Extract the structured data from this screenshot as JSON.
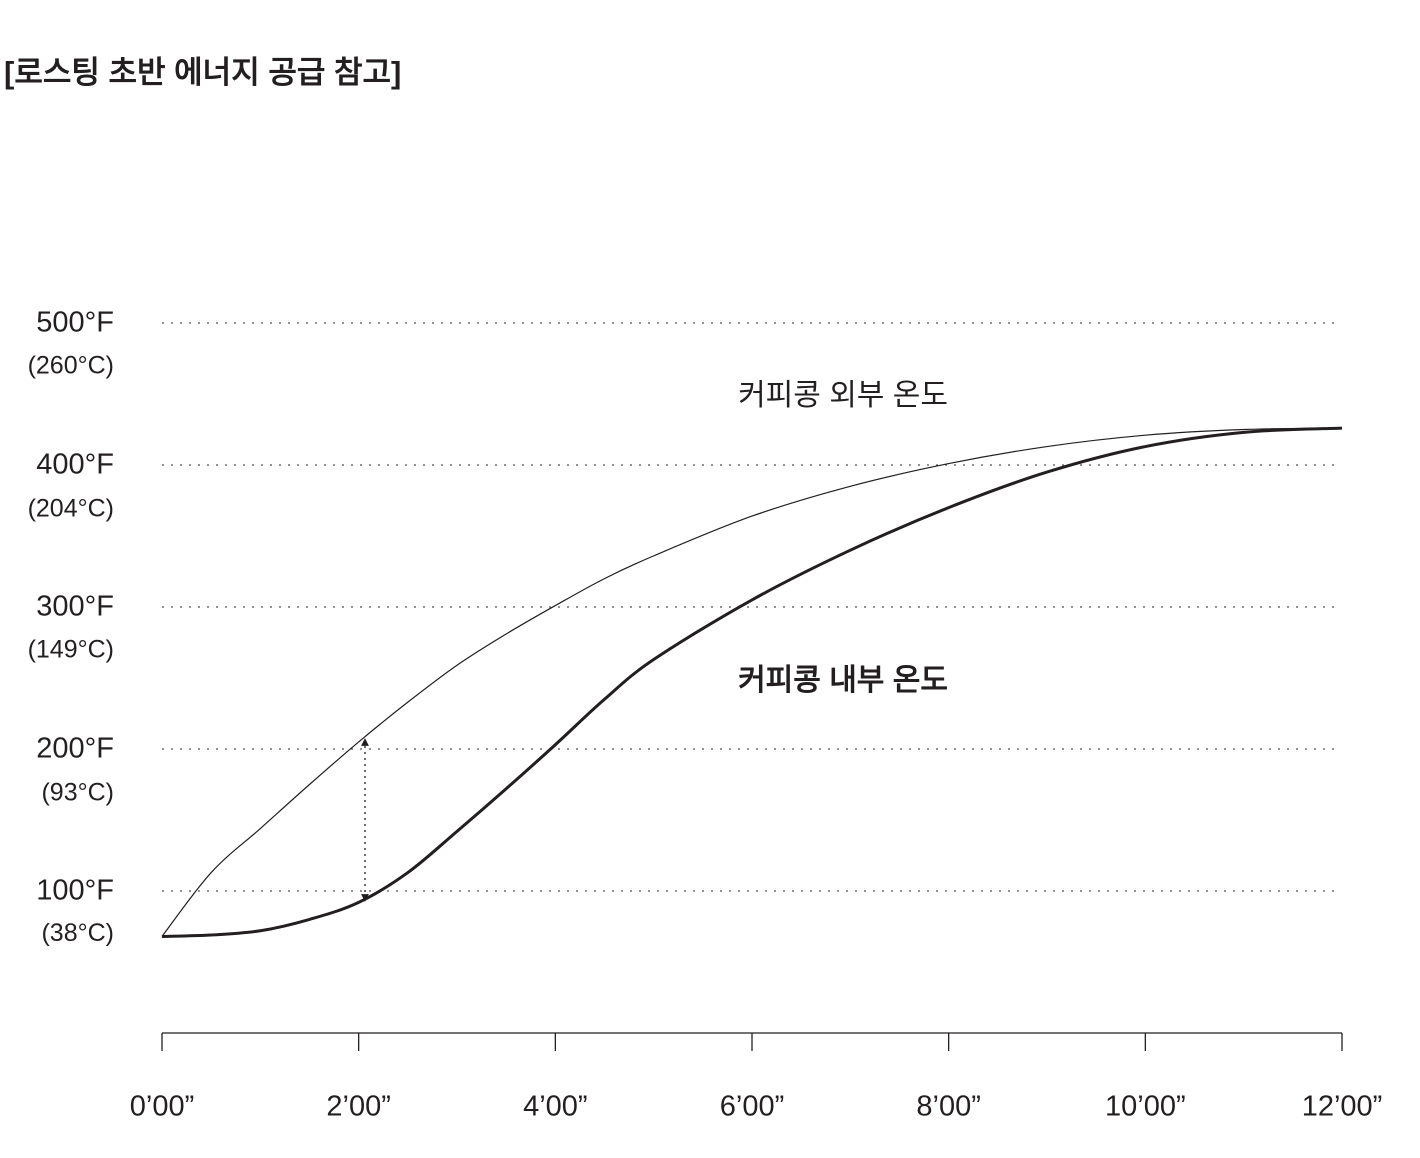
{
  "chart_data": {
    "type": "line",
    "title": "[로스팅 초반 에너지 공급 참고]",
    "annotations": [
      "커피콩 외부 온도",
      "커피콩 내부 온도"
    ],
    "x": [
      0,
      0.5,
      1,
      1.5,
      2,
      2.5,
      3,
      3.5,
      4,
      4.5,
      5,
      6,
      7,
      8,
      9,
      10,
      11,
      12
    ],
    "series": [
      {
        "color": "#231f20",
        "values": [
          68,
          113,
          144,
          175,
          205,
          233,
          259,
          281,
          301,
          320,
          336,
          364,
          385,
          401,
          413,
          421,
          425,
          426
        ]
      },
      {
        "color": "#231f20",
        "values": [
          68,
          69,
          72,
          80,
          92,
          113,
          142,
          172,
          203,
          235,
          263,
          305,
          340,
          370,
          395,
          413,
          423,
          426
        ]
      }
    ],
    "xlim": [
      0,
      12
    ],
    "xticks": [
      {
        "value": 0,
        "label": "0’00”"
      },
      {
        "value": 2,
        "label": "2’00”"
      },
      {
        "value": 4,
        "label": "4’00”"
      },
      {
        "value": 6,
        "label": "6’00”"
      },
      {
        "value": 8,
        "label": "8’00”"
      },
      {
        "value": 10,
        "label": "10’00”"
      },
      {
        "value": 12,
        "label": "12’00”"
      }
    ],
    "ylim": [
      0,
      500
    ],
    "yticks": [
      {
        "value": 100,
        "label": "100°F"
      },
      {
        "value": 200,
        "label": "200°F"
      },
      {
        "value": 300,
        "label": "300°F"
      },
      {
        "value": 400,
        "label": "400°F"
      },
      {
        "value": 500,
        "label": "500°F"
      }
    ],
    "y2lim": [
      -17.8,
      260
    ],
    "y2ticks": [
      {
        "value": 38,
        "label": "(38°C)"
      },
      {
        "value": 93,
        "label": "(93°C)"
      },
      {
        "value": 149,
        "label": "(149°C)"
      },
      {
        "value": 204,
        "label": "(204°C)"
      },
      {
        "value": 260,
        "label": "(260°C)"
      }
    ],
    "grid": true
  }
}
